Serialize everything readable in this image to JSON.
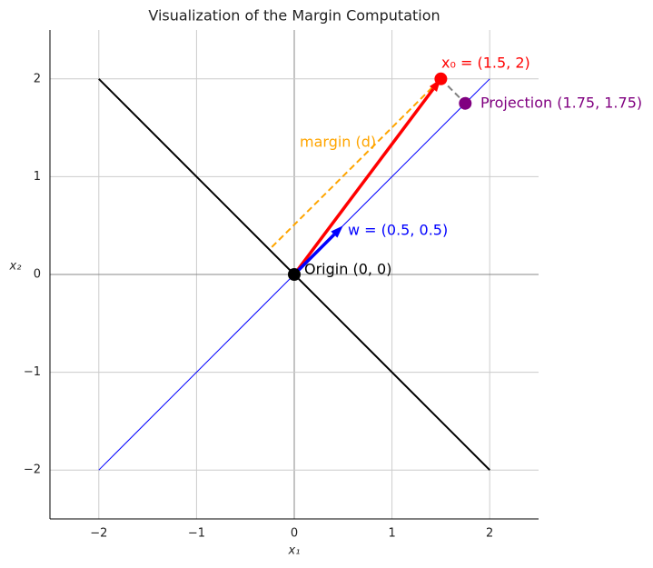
{
  "chart_data": {
    "type": "line",
    "title": "Visualization of the Margin Computation",
    "x_label": "x₁",
    "y_label": "x₂",
    "xlim": [
      -2.5,
      2.5
    ],
    "ylim": [
      -2.5,
      2.5
    ],
    "xticks": [
      {
        "value": -2,
        "label": "−2"
      },
      {
        "value": -1,
        "label": "−1"
      },
      0,
      1,
      2
    ],
    "yticks": [
      {
        "value": -2,
        "label": "−2"
      },
      {
        "value": -1,
        "label": "−1"
      },
      0,
      1,
      2
    ],
    "grid": true,
    "series": [
      {
        "color": "#000000",
        "width": 2,
        "x": [
          -2,
          2
        ],
        "values": [
          2,
          -2
        ]
      },
      {
        "color": "#0000ff",
        "width": 1,
        "x": [
          -2,
          2
        ],
        "values": [
          -2,
          2
        ]
      },
      {
        "color": "#ffa500",
        "width": 2,
        "dashed": true,
        "x": [
          -0.23,
          1.45
        ],
        "values": [
          0.28,
          1.95
        ]
      },
      {
        "color": "#808080",
        "width": 2,
        "dashed": true,
        "x": [
          1.5,
          1.75
        ],
        "values": [
          2,
          1.75
        ]
      },
      {
        "color": "#ff0000",
        "width": 3.5,
        "arrow": true,
        "x": [
          0,
          1.5
        ],
        "values": [
          0,
          2
        ]
      },
      {
        "color": "#0000ff",
        "width": 3.5,
        "arrow": true,
        "x": [
          0,
          0.5
        ],
        "values": [
          0,
          0.5
        ]
      }
    ],
    "points": [
      {
        "x": 0,
        "y": 0,
        "color": "#000000"
      },
      {
        "x": 1.5,
        "y": 2,
        "color": "#ff0000"
      },
      {
        "x": 1.75,
        "y": 1.75,
        "color": "#800080"
      }
    ],
    "annotations": [
      {
        "text": "Origin (0, 0)",
        "color": "#000000"
      },
      {
        "text": "x₀ = (1.5, 2)",
        "color": "#ff0000"
      },
      {
        "text": "w = (0.5, 0.5)",
        "color": "#0000ff"
      },
      {
        "text": "margin (d)",
        "color": "#ffa500"
      },
      {
        "text": "Projection (1.75, 1.75)",
        "color": "#800080"
      }
    ]
  }
}
